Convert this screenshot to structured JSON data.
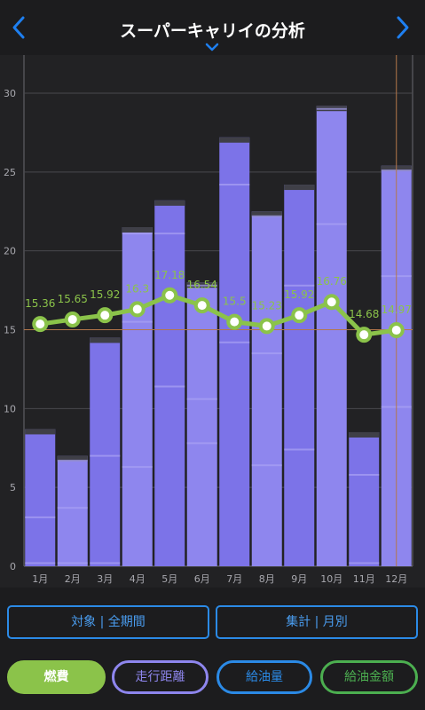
{
  "header": {
    "title": "スーパーキャリイの分析",
    "prev_icon": "chevron-left-icon",
    "next_icon": "chevron-right-icon",
    "dropdown_icon": "chevron-down-icon",
    "accent": "#1e7ff0"
  },
  "chart_data": {
    "type": "bar",
    "categories": [
      "1月",
      "2月",
      "3月",
      "4月",
      "5月",
      "6月",
      "7月",
      "8月",
      "9月",
      "10月",
      "11月",
      "12月"
    ],
    "y_ticks": [
      "0",
      "5",
      "10",
      "15",
      "20",
      "25",
      "30"
    ],
    "ylim": [
      0,
      32
    ],
    "bar_totals": [
      8.7,
      7.0,
      14.5,
      21.5,
      23.2,
      18.0,
      27.2,
      22.5,
      24.2,
      29.2,
      8.5,
      25.4
    ],
    "bar_segment_lines": [
      [
        0.2,
        3.1
      ],
      [
        0.2,
        3.7,
        6.7
      ],
      [
        0.2,
        7.0
      ],
      [
        6.3,
        15.5,
        21.1
      ],
      [
        11.4,
        21.1
      ],
      [
        7.8,
        10.6,
        17.8
      ],
      [
        14.2,
        24.2
      ],
      [
        6.4,
        13.5,
        22.2
      ],
      [
        7.4,
        17.8
      ],
      [
        21.7,
        29.0
      ],
      [
        0.2,
        5.8
      ],
      [
        10.1,
        18.4,
        25.1
      ]
    ],
    "line_series": {
      "name": "燃費",
      "values": [
        15.36,
        15.65,
        15.92,
        16.3,
        17.18,
        16.54,
        15.5,
        15.23,
        15.92,
        16.76,
        14.68,
        14.97
      ],
      "labels": [
        "15.36",
        "15.65",
        "15.92",
        "16.3",
        "17.18",
        "16.54",
        "15.5",
        "15.23",
        "15.92",
        "16.76",
        "14.68",
        "14.97"
      ],
      "color": "#8bc34a"
    },
    "average_line_value": 15.0,
    "highlight_index": 11,
    "colors": {
      "bar_dark": "#7c73e8",
      "bar_light": "#8e86ee",
      "bar_cap": "#3f3f47",
      "grid": "#4a4a4e",
      "reference": "#b4774a"
    }
  },
  "controls": {
    "target_label": "対象 | 全期間",
    "aggregate_label": "集計 | 月別"
  },
  "tabs": [
    {
      "label": "燃費",
      "color": "#8bc34a",
      "active": true
    },
    {
      "label": "走行距離",
      "color": "#8e86ee",
      "active": false
    },
    {
      "label": "給油量",
      "color": "#2b8ae6",
      "active": false
    },
    {
      "label": "給油金額",
      "color": "#4caf50",
      "active": false
    }
  ]
}
